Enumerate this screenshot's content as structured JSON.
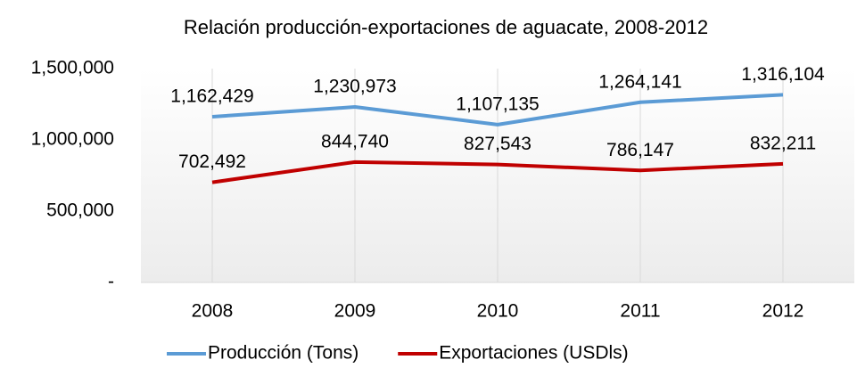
{
  "chart_data": {
    "type": "line",
    "title": "Relación producción-exportaciones de aguacate, 2008-2012",
    "categories": [
      "2008",
      "2009",
      "2010",
      "2011",
      "2012"
    ],
    "series": [
      {
        "name": "Producción (Tons)",
        "color": "#5b9bd5",
        "values": [
          1162429,
          1230973,
          1107135,
          1264141,
          1316104
        ],
        "value_labels": [
          "1,162,429",
          "1,230,973",
          "1,107,135",
          "1,264,141",
          "1,316,104"
        ]
      },
      {
        "name": "Exportaciones (USDls)",
        "color": "#c00000",
        "values": [
          702492,
          844740,
          827543,
          786147,
          832211
        ],
        "value_labels": [
          "702,492",
          "844,740",
          "827,543",
          "786,147",
          "832,211"
        ]
      }
    ],
    "ylim": [
      0,
      1500000
    ],
    "yticks": [
      {
        "value": 0,
        "label": "-"
      },
      {
        "value": 500000,
        "label": "500,000"
      },
      {
        "value": 1000000,
        "label": "1,000,000"
      },
      {
        "value": 1500000,
        "label": "1,500,000"
      }
    ],
    "legend": "bottom"
  }
}
